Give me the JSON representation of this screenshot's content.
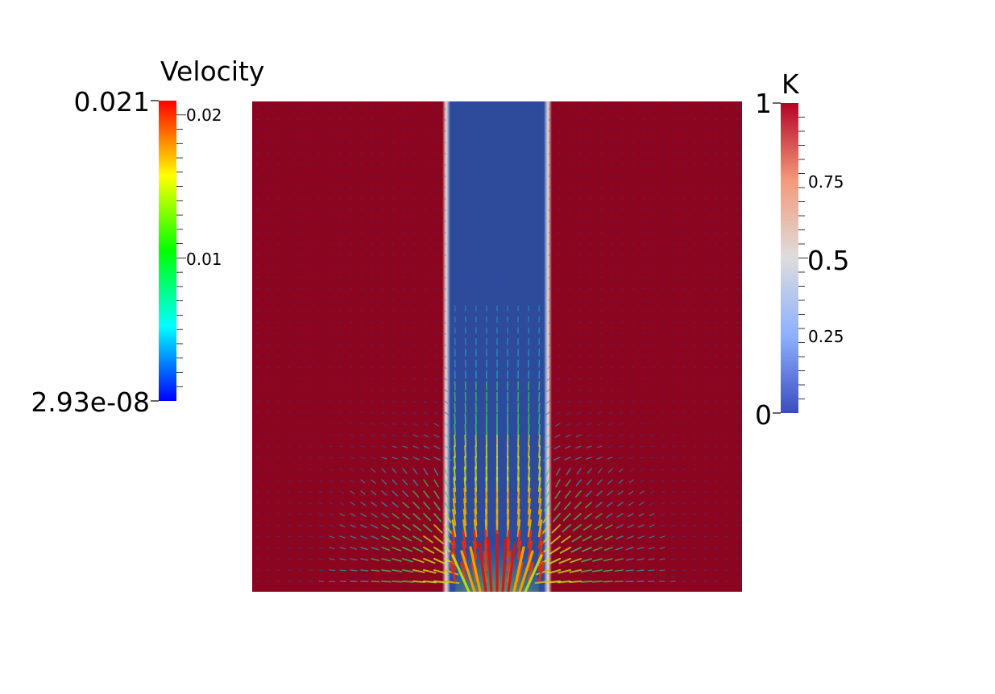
{
  "velocity_bar": {
    "title": "Velocity",
    "max_label": "0.021",
    "min_label": "2.93e-08",
    "tick_labels": [
      "0.02",
      "0.01"
    ],
    "colors": [
      "#0000ff",
      "#00ffff",
      "#00ff00",
      "#ffff00",
      "#ff0000"
    ]
  },
  "k_bar": {
    "title": "K",
    "max_label": "1",
    "min_label": "0",
    "tick_labels": [
      "0.75",
      "0.5",
      "0.25"
    ],
    "colors": [
      "#3b4cc0",
      "#dddddd",
      "#b40426"
    ]
  },
  "field": {
    "outer_color": "#8b0420",
    "channel_color": "#2e4a9a",
    "arrow_colors": [
      "#1f4fb0",
      "#20b0d0",
      "#3ccf60",
      "#c8e020",
      "#f0b000",
      "#e03010"
    ]
  }
}
